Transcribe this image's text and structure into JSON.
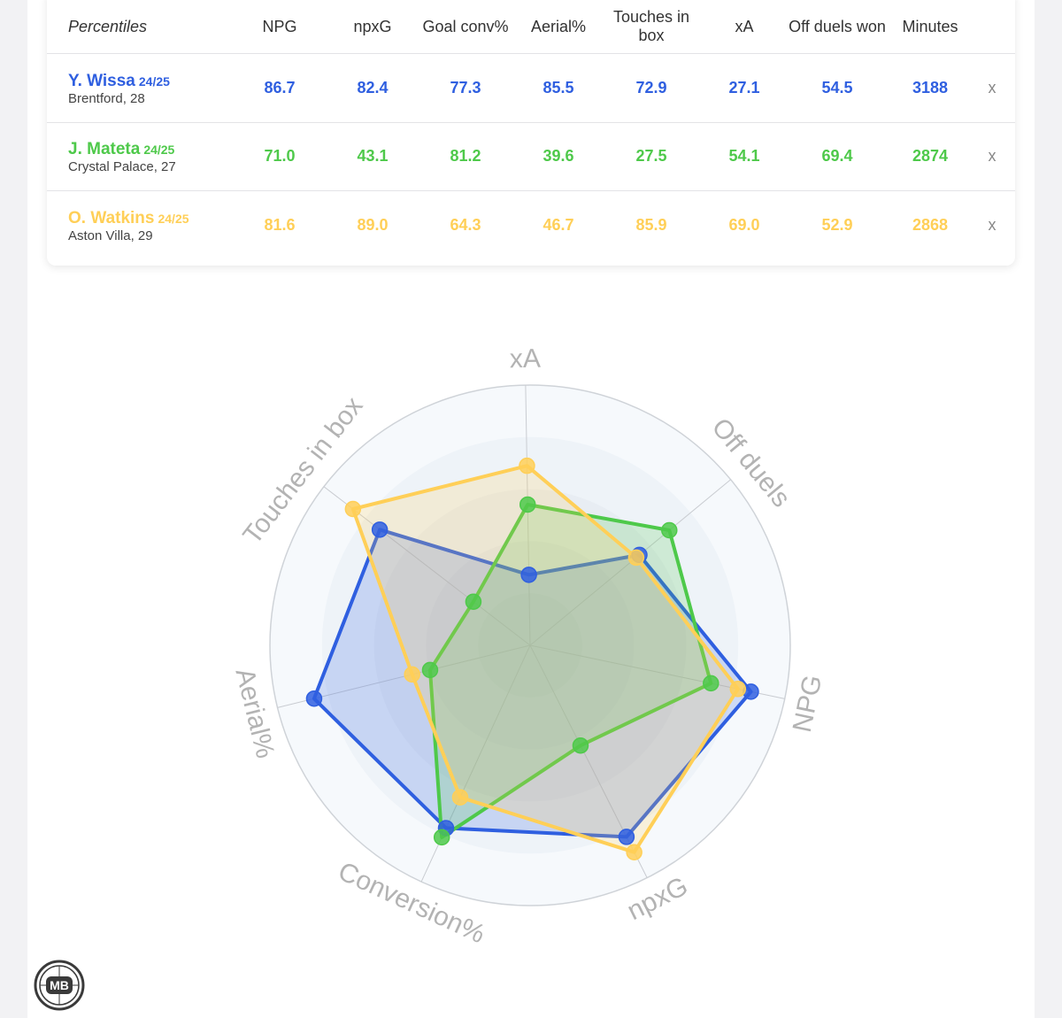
{
  "table": {
    "header": {
      "first": "Percentiles",
      "columns": [
        "NPG",
        "npxG",
        "Goal conv%",
        "Aerial%",
        "Touches in box",
        "xA",
        "Off duels won",
        "Minutes"
      ]
    },
    "remove_label": "x",
    "rows": [
      {
        "name": "Y. Wissa",
        "season": "24/25",
        "club": "Brentford, 28",
        "color": "#2f5fe0",
        "values": [
          "86.7",
          "82.4",
          "77.3",
          "85.5",
          "72.9",
          "27.1",
          "54.5",
          "3188"
        ]
      },
      {
        "name": "J. Mateta",
        "season": "24/25",
        "club": "Crystal Palace, 27",
        "color": "#4ec94a",
        "values": [
          "71.0",
          "43.1",
          "81.2",
          "39.6",
          "27.5",
          "54.1",
          "69.4",
          "2874"
        ]
      },
      {
        "name": "O. Watkins",
        "season": "24/25",
        "club": "Aston Villa, 29",
        "color": "#ffcf57",
        "values": [
          "81.6",
          "89.0",
          "64.3",
          "46.7",
          "85.9",
          "69.0",
          "52.9",
          "2868"
        ]
      }
    ]
  },
  "chart_data": {
    "type": "radar",
    "axes": [
      "xA",
      "Off duels",
      "NPG",
      "npxG",
      "Conversion%",
      "Aerial%",
      "Touches in box"
    ],
    "range": [
      0,
      100
    ],
    "series": [
      {
        "name": "Y. Wissa",
        "color": "#2f5fe0",
        "values": [
          27.1,
          54.5,
          86.7,
          82.4,
          77.3,
          85.5,
          72.9
        ]
      },
      {
        "name": "J. Mateta",
        "color": "#4ec94a",
        "values": [
          54.1,
          69.4,
          71.0,
          43.1,
          81.2,
          39.6,
          27.5
        ]
      },
      {
        "name": "O. Watkins",
        "color": "#ffcf57",
        "values": [
          69.0,
          52.9,
          81.6,
          89.0,
          64.3,
          46.7,
          85.9
        ]
      }
    ]
  },
  "logo": {
    "text": "MB"
  }
}
